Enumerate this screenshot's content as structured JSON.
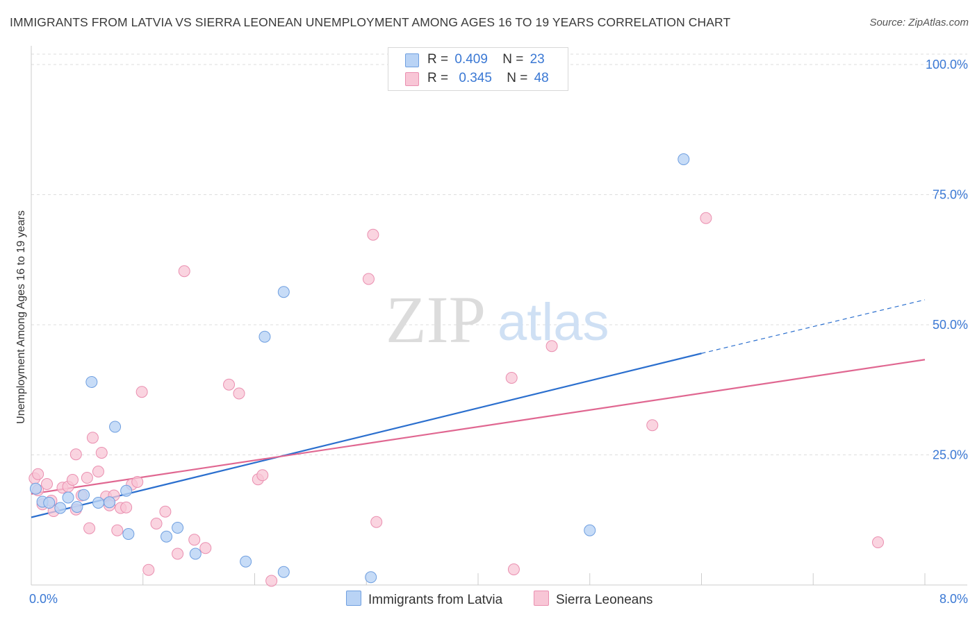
{
  "title": "IMMIGRANTS FROM LATVIA VS SIERRA LEONEAN UNEMPLOYMENT AMONG AGES 16 TO 19 YEARS CORRELATION CHART",
  "source": "Source: ZipAtlas.com",
  "watermark": {
    "zip": "ZIP",
    "atlas": "atlas"
  },
  "legend": {
    "r_label": "R =",
    "n_label": "N =",
    "series1": {
      "r": "0.409",
      "n": "23"
    },
    "series2": {
      "r": "0.345",
      "n": "48"
    }
  },
  "bottom_legend": {
    "series1": "Immigrants from Latvia",
    "series2": "Sierra Leoneans"
  },
  "colors": {
    "blue_fill": "#b9d3f5",
    "blue_stroke": "#6f9fe0",
    "blue_line": "#2b6fce",
    "pink_fill": "#f8c6d6",
    "pink_stroke": "#ea8fb0",
    "pink_line": "#e06791",
    "axis_text": "#3a78d4",
    "grid": "#dddddd"
  },
  "chart_data": {
    "type": "scatter",
    "title": "IMMIGRANTS FROM LATVIA VS SIERRA LEONEAN UNEMPLOYMENT AMONG AGES 16 TO 19 YEARS CORRELATION CHART",
    "xlabel": "",
    "ylabel": "Unemployment Among Ages 16 to 19 years",
    "xlim": [
      0,
      8
    ],
    "ylim": [
      0,
      102
    ],
    "x_tick_labels": [
      "0.0%",
      "8.0%"
    ],
    "y_ticks": [
      25,
      50,
      75,
      100
    ],
    "y_tick_labels": [
      "25.0%",
      "50.0%",
      "75.0%",
      "100.0%"
    ],
    "legend_position": "top-center",
    "series": [
      {
        "name": "Immigrants from Latvia",
        "r": 0.409,
        "n": 23,
        "points": [
          [
            0.04,
            18.5
          ],
          [
            0.1,
            16.0
          ],
          [
            0.16,
            15.8
          ],
          [
            0.26,
            14.8
          ],
          [
            0.33,
            16.8
          ],
          [
            0.41,
            15.0
          ],
          [
            0.47,
            17.3
          ],
          [
            0.54,
            39.0
          ],
          [
            0.6,
            15.8
          ],
          [
            0.7,
            15.9
          ],
          [
            0.75,
            30.4
          ],
          [
            0.85,
            18.1
          ],
          [
            0.87,
            9.8
          ],
          [
            1.21,
            9.3
          ],
          [
            1.31,
            11.0
          ],
          [
            1.47,
            6.0
          ],
          [
            1.92,
            4.5
          ],
          [
            2.09,
            47.7
          ],
          [
            2.26,
            56.3
          ],
          [
            2.26,
            2.5
          ],
          [
            3.04,
            1.5
          ],
          [
            5.0,
            10.5
          ],
          [
            5.84,
            81.8
          ]
        ],
        "trend": {
          "x0": 0.0,
          "y0": 13.0,
          "x1": 6.0,
          "y1": 44.5,
          "dashed_to_x": 8.0,
          "dashed_to_y": 54.8
        }
      },
      {
        "name": "Sierra Leoneans",
        "r": 0.345,
        "n": 48,
        "points": [
          [
            0.03,
            20.5
          ],
          [
            0.06,
            21.3
          ],
          [
            0.1,
            15.5
          ],
          [
            0.14,
            19.4
          ],
          [
            0.18,
            16.2
          ],
          [
            0.2,
            14.2
          ],
          [
            0.28,
            18.7
          ],
          [
            0.33,
            18.9
          ],
          [
            0.37,
            20.2
          ],
          [
            0.4,
            14.5
          ],
          [
            0.4,
            25.1
          ],
          [
            0.45,
            17.2
          ],
          [
            0.5,
            20.6
          ],
          [
            0.52,
            10.9
          ],
          [
            0.55,
            28.3
          ],
          [
            0.6,
            21.8
          ],
          [
            0.63,
            25.4
          ],
          [
            0.67,
            17.0
          ],
          [
            0.7,
            15.3
          ],
          [
            0.74,
            17.2
          ],
          [
            0.77,
            10.5
          ],
          [
            0.8,
            14.8
          ],
          [
            0.85,
            14.9
          ],
          [
            0.9,
            19.3
          ],
          [
            0.95,
            19.8
          ],
          [
            0.99,
            37.1
          ],
          [
            1.05,
            2.9
          ],
          [
            1.12,
            11.8
          ],
          [
            1.2,
            14.1
          ],
          [
            1.31,
            6.0
          ],
          [
            1.37,
            60.3
          ],
          [
            1.46,
            8.7
          ],
          [
            1.56,
            7.1
          ],
          [
            1.77,
            38.5
          ],
          [
            1.86,
            36.8
          ],
          [
            2.03,
            20.3
          ],
          [
            2.07,
            21.1
          ],
          [
            2.15,
            0.8
          ],
          [
            3.02,
            58.8
          ],
          [
            3.06,
            67.3
          ],
          [
            3.09,
            12.1
          ],
          [
            4.3,
            39.8
          ],
          [
            4.32,
            3.0
          ],
          [
            4.66,
            45.9
          ],
          [
            5.56,
            30.7
          ],
          [
            6.04,
            70.5
          ],
          [
            7.58,
            8.2
          ],
          [
            0.06,
            18.2
          ]
        ],
        "trend": {
          "x0": 0.0,
          "y0": 17.5,
          "x1": 8.0,
          "y1": 43.3
        }
      }
    ]
  }
}
